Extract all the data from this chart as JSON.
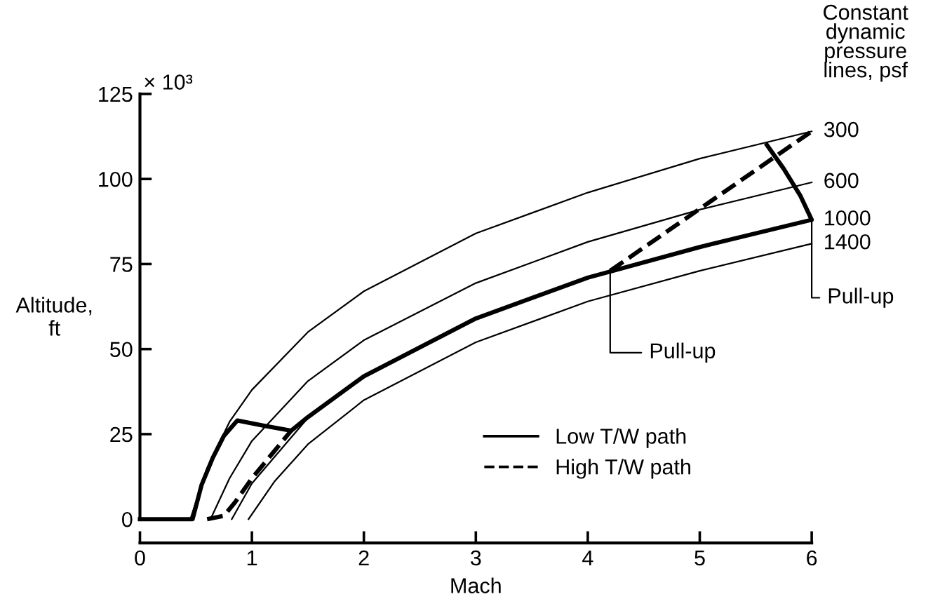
{
  "chart_data": {
    "type": "line",
    "xlabel": "Mach",
    "ylabel": "Altitude,\nft",
    "xlim": [
      0,
      6
    ],
    "ylim": [
      -7,
      125
    ],
    "xticks": [
      0,
      1,
      2,
      3,
      4,
      5,
      6
    ],
    "yticks": [
      0,
      25,
      50,
      75,
      100,
      125
    ],
    "grid": false,
    "legend": "lower right",
    "marker": "none",
    "annotations": [
      "Constant\ndynamic\npressure\nlines, psf",
      "× 10³",
      {
        "text": "Pull-up",
        "x": 4.2,
        "y": 73
      },
      {
        "text": "Pull-up",
        "x": 6,
        "y": 88
      }
    ],
    "series": [
      {
        "name": "300",
        "color": "#000000",
        "line_style": "solid",
        "x": [
          0.45,
          0.6,
          0.8,
          1,
          1.5,
          2,
          3,
          4,
          5,
          6
        ],
        "values": [
          0,
          15,
          28.6,
          38,
          55,
          67,
          84,
          96,
          106,
          114
        ]
      },
      {
        "name": "600",
        "color": "#000000",
        "line_style": "solid",
        "x": [
          0.63,
          0.8,
          1,
          1.5,
          2,
          3,
          4,
          5,
          6
        ],
        "values": [
          0,
          12,
          23,
          40.6,
          52.6,
          69.4,
          81.5,
          91,
          99
        ]
      },
      {
        "name": "1000",
        "color": "#000000",
        "line_style": "solid",
        "x": [
          0.82,
          1,
          1.5,
          2,
          3,
          4,
          5,
          6
        ],
        "values": [
          0,
          10.5,
          29.8,
          42,
          59,
          71,
          80,
          88
        ]
      },
      {
        "name": "1400",
        "color": "#000000",
        "line_style": "solid",
        "x": [
          0.97,
          1.2,
          1.5,
          2,
          3,
          4,
          5,
          6
        ],
        "values": [
          0,
          11,
          22,
          35,
          52,
          64,
          73,
          81
        ]
      },
      {
        "name": "Low T/W path",
        "color": "#000000",
        "line_style": "solid",
        "x": [
          0,
          0.47,
          0.55,
          0.65,
          0.75,
          0.87,
          1.1,
          1.35,
          1.5,
          2,
          3,
          4,
          5,
          6,
          5.9,
          5.75,
          5.6
        ],
        "values": [
          0,
          0,
          10,
          18,
          24.5,
          29,
          27.5,
          26,
          30,
          42,
          59,
          71,
          80,
          88,
          95,
          103,
          110
        ]
      },
      {
        "name": "High T/W path",
        "color": "#000000",
        "line_style": "dashed",
        "x": [
          0.6,
          0.75,
          0.85,
          1.0,
          1.2,
          1.35,
          2.5,
          4.2,
          6
        ],
        "values": [
          0,
          1,
          5,
          12,
          20,
          26,
          null,
          73,
          114
        ]
      }
    ]
  }
}
